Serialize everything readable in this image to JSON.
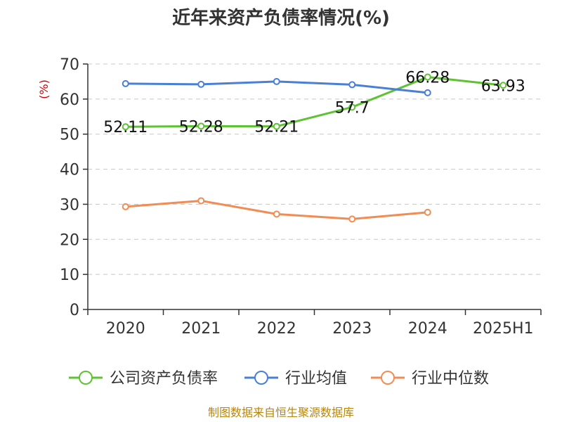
{
  "chart_data": {
    "type": "line",
    "title": "近年来资产负债率情况(%)",
    "ylabel": "(%)",
    "ylim": [
      0,
      70
    ],
    "yticks": [
      0,
      10,
      20,
      30,
      40,
      50,
      60,
      70
    ],
    "categories": [
      "2020",
      "2021",
      "2022",
      "2023",
      "2024",
      "2025H1"
    ],
    "grid": true,
    "legend_position": "bottom",
    "series": [
      {
        "name": "公司资产负债率",
        "color": "#5fc234",
        "values": [
          52.11,
          52.28,
          52.21,
          57.7,
          66.28,
          63.93
        ],
        "labels": [
          "52.11",
          "52.28",
          "52.21",
          "57.7",
          "66.28",
          "63.93"
        ]
      },
      {
        "name": "行业均值",
        "color": "#4a7fd6",
        "values": [
          64.4,
          64.2,
          65.0,
          64.1,
          61.8,
          null
        ]
      },
      {
        "name": "行业中位数",
        "color": "#f28c55",
        "values": [
          29.3,
          31.0,
          27.2,
          25.8,
          27.7,
          null
        ]
      }
    ]
  },
  "source": "制图数据来自恒生聚源数据库"
}
